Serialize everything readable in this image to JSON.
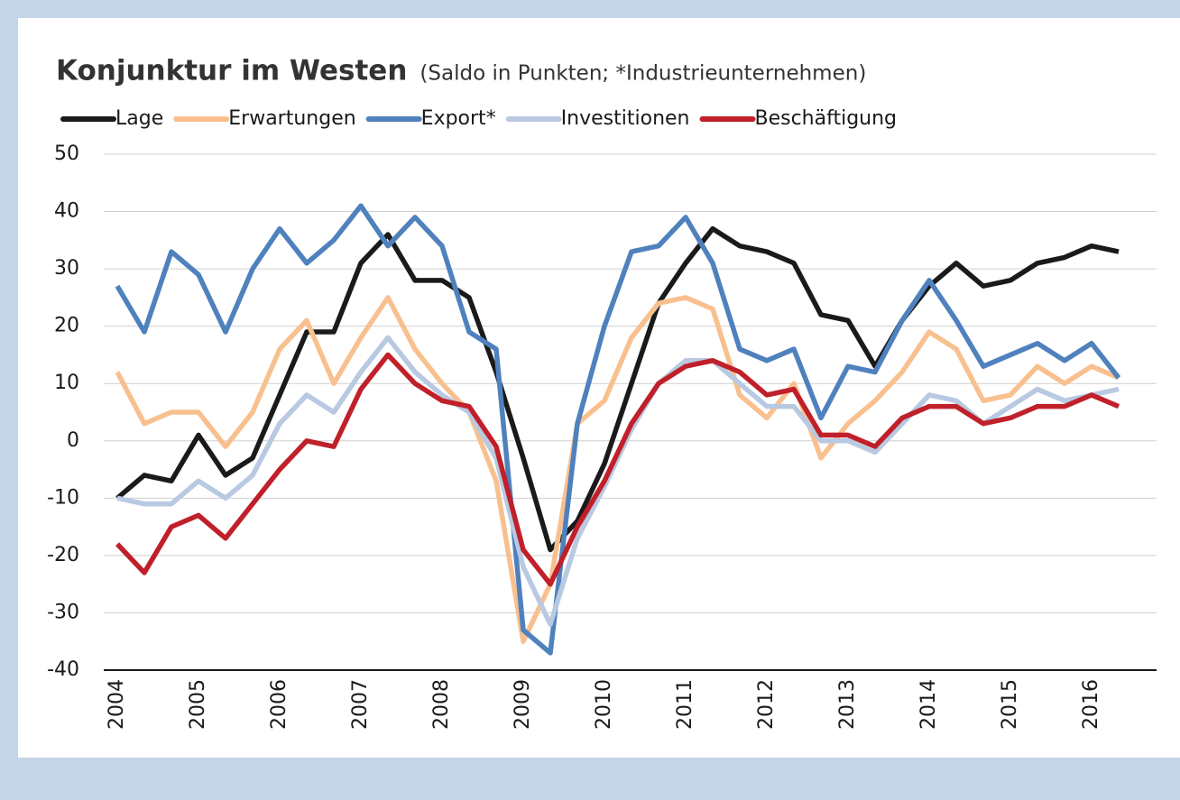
{
  "chart_data": {
    "type": "line",
    "title": "Konjunktur im Westen",
    "subtitle": "(Saldo in Punkten; *Industrieunternehmen)",
    "categories": [
      "2004",
      null,
      null,
      "2005",
      null,
      null,
      "2006",
      null,
      null,
      "2007",
      null,
      null,
      "2008",
      null,
      null,
      "2009",
      null,
      null,
      "2010",
      null,
      null,
      "2011",
      null,
      null,
      "2012",
      null,
      null,
      "2013",
      null,
      null,
      "2014",
      null,
      null,
      "2015",
      null,
      null,
      "2016",
      null
    ],
    "series": [
      {
        "name": "Lage",
        "color": "#1a1a1a",
        "values": [
          -10,
          -6,
          -7,
          1,
          -6,
          -3,
          8,
          19,
          19,
          31,
          36,
          28,
          28,
          25,
          12,
          -3,
          -19,
          -14,
          -4,
          10,
          24,
          31,
          37,
          34,
          33,
          31,
          22,
          21,
          13,
          21,
          27,
          31,
          27,
          28,
          31,
          32,
          34,
          33
        ]
      },
      {
        "name": "Erwartungen",
        "color": "#f9c08f",
        "values": [
          12,
          3,
          5,
          5,
          -1,
          5,
          16,
          21,
          10,
          18,
          25,
          16,
          10,
          5,
          -7,
          -35,
          -25,
          3,
          7,
          18,
          24,
          25,
          23,
          8,
          4,
          10,
          -3,
          3,
          7,
          12,
          19,
          16,
          7,
          8,
          13,
          10,
          13,
          11
        ]
      },
      {
        "name": "Export*",
        "color": "#4f81bd",
        "values": [
          27,
          19,
          33,
          29,
          19,
          30,
          37,
          31,
          35,
          41,
          34,
          39,
          34,
          19,
          16,
          -33,
          -37,
          3,
          20,
          33,
          34,
          39,
          31,
          16,
          14,
          16,
          4,
          13,
          12,
          21,
          28,
          21,
          13,
          15,
          17,
          14,
          17,
          11
        ]
      },
      {
        "name": "Investitionen",
        "color": "#b8c9e1",
        "values": [
          -10,
          -11,
          -11,
          -7,
          -10,
          -6,
          3,
          8,
          5,
          12,
          18,
          12,
          8,
          5,
          -3,
          -22,
          -32,
          -17,
          -8,
          2,
          10,
          14,
          14,
          10,
          6,
          6,
          0,
          0,
          -2,
          3,
          8,
          7,
          3,
          6,
          9,
          7,
          8,
          9
        ]
      },
      {
        "name": "Beschäftigung",
        "color": "#c0202a",
        "values": [
          -18,
          -23,
          -15,
          -13,
          -17,
          -11,
          -5,
          0,
          -1,
          9,
          15,
          10,
          7,
          6,
          -1,
          -19,
          -25,
          -15,
          -7,
          3,
          10,
          13,
          14,
          12,
          8,
          9,
          1,
          1,
          -1,
          4,
          6,
          6,
          3,
          4,
          6,
          6,
          8,
          6
        ]
      }
    ],
    "ylim": [
      -40,
      50
    ],
    "yticks": [
      -40,
      -30,
      -20,
      -10,
      0,
      10,
      20,
      30,
      40,
      50
    ],
    "grid": true
  }
}
